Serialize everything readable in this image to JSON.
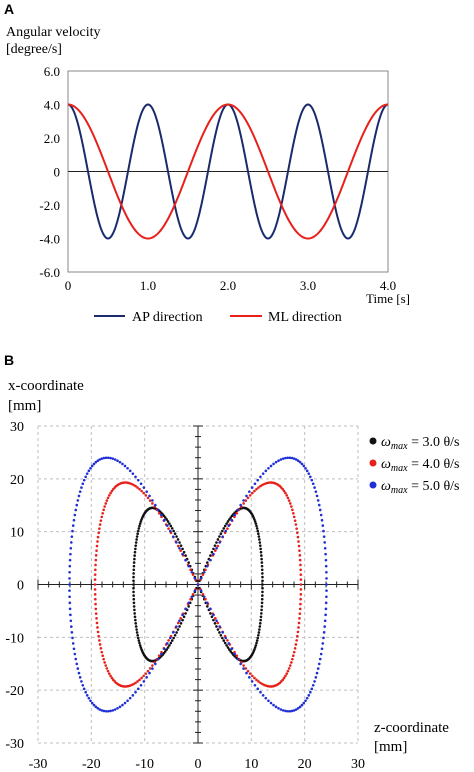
{
  "panels": {
    "a_label": "A",
    "b_label": "B"
  },
  "chart_data": [
    {
      "type": "line",
      "panel": "A",
      "ylabel_line1": "Angular velocity",
      "ylabel_line2": "[degree/s]",
      "xlabel": "Time [s]",
      "xlim": [
        0,
        4
      ],
      "ylim": [
        -6,
        6
      ],
      "xticks": [
        0,
        1,
        2,
        3,
        4
      ],
      "xtick_labels": [
        "0",
        "1.0",
        "2.0",
        "3.0",
        "4.0"
      ],
      "yticks": [
        6,
        4,
        2,
        0,
        -2,
        -4,
        -6
      ],
      "ytick_labels": [
        "6.0",
        "4.0",
        "2.0",
        "0",
        "-2.0",
        "-4.0",
        "-6.0"
      ],
      "legend_position": "bottom",
      "series": [
        {
          "name": "AP direction",
          "color": "#1a2a6c",
          "amplitude": 4.0,
          "frequency_hz": 1.0,
          "form": "4.0*cos(2*pi*t)"
        },
        {
          "name": "ML direction",
          "color": "#e8201a",
          "amplitude": 4.0,
          "frequency_hz": 0.5,
          "form": "4.0*cos(pi*t)"
        }
      ]
    },
    {
      "type": "scatter",
      "panel": "B",
      "ylabel_line1": "x-coordinate",
      "ylabel_line2": "[mm]",
      "xlabel_line1": "z-coordinate",
      "xlabel_line2": "[mm]",
      "xlim": [
        -30,
        30
      ],
      "ylim": [
        -30,
        30
      ],
      "xticks": [
        -30,
        -20,
        -10,
        0,
        10,
        20,
        30
      ],
      "xtick_labels": [
        "-30",
        "-20",
        "-10",
        "0",
        "10",
        "20",
        "30"
      ],
      "yticks": [
        30,
        20,
        10,
        0,
        -10,
        -20,
        -30
      ],
      "ytick_labels": [
        "30",
        "20",
        "10",
        "0",
        "-10",
        "-20",
        "-30"
      ],
      "grid": true,
      "legend_position": "top-right",
      "legend_symbol": "ω",
      "legend_subscript": "max",
      "series": [
        {
          "name": "= 3.0 θ/s",
          "color": "#111111",
          "z_extent": 12.1,
          "x_extent": 14.5
        },
        {
          "name": "= 4.0 θ/s",
          "color": "#e8201a",
          "z_extent": 19.3,
          "x_extent": 19.3
        },
        {
          "name": "= 5.0 θ/s",
          "color": "#1f2fd6",
          "z_extent": 24.1,
          "x_extent": 24.0
        }
      ]
    }
  ]
}
